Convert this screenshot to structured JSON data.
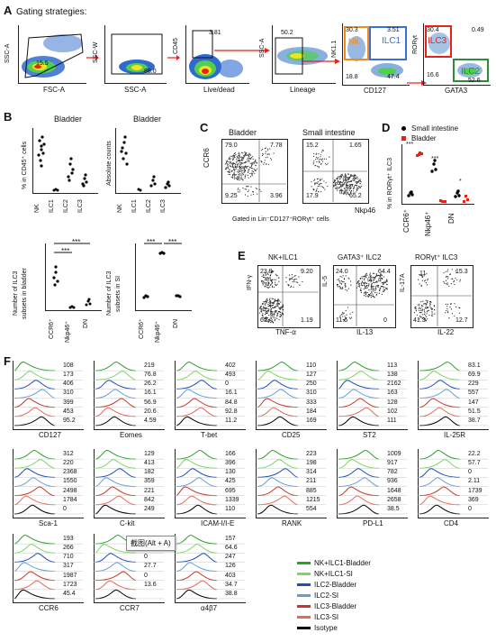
{
  "colors": {
    "nk_b": "#2ca02c",
    "nk_s": "#7fd36b",
    "ilc2_b": "#1f4fb4",
    "ilc2_s": "#6b9bd6",
    "ilc3_b": "#c0392b",
    "ilc3_s": "#e06b5a",
    "iso": "#000000",
    "red": "#e8211a",
    "orange": "#f08a1c",
    "blue": "#3a6fd8",
    "green": "#2f8a3a"
  },
  "A": {
    "letter": "A",
    "title": "Gating strategies:",
    "p1": {
      "y": "SSC-A",
      "x": "FSC-A",
      "val": "15.5"
    },
    "p2": {
      "y": "SSC-W",
      "x": "SSC-A",
      "val": "88.0"
    },
    "p3": {
      "y": "CD45",
      "x": "Live/dead",
      "val": "3.81"
    },
    "p4": {
      "y": "SSC-A",
      "x": "Lineage",
      "val": "50.2"
    },
    "p5": {
      "y": "NK1.1",
      "x": "CD127",
      "q_tl": "30.3",
      "q_tr": "3.51",
      "q_bl": "18.8",
      "q_br": "47.4",
      "nk": "NK",
      "ilc1": "ILC1"
    },
    "p6": {
      "y": "RORγt",
      "x": "GATA3",
      "q_tl": "30.4",
      "q_tr": "0.49",
      "q_bl": "16.6",
      "q_br": "52.6",
      "ilc3": "ILC3",
      "ilc2": "ILC2"
    }
  },
  "B": {
    "letter": "B",
    "c1": {
      "title": "Bladder",
      "ylabel": "% in CD45⁺ cells",
      "ticks": [
        "NK",
        "ILC1",
        "ILC2",
        "ILC3"
      ]
    },
    "c2": {
      "title": "Bladder",
      "ylabel": "Absolute counts",
      "ticks": [
        "NK",
        "ILC1",
        "ILC2",
        "ILC3"
      ]
    },
    "c3": {
      "ylabel1": "Number of ILC3",
      "ylabel2": "subsets in bladder",
      "ticks": [
        "CCR6⁺",
        "Nkp46⁺",
        "DN"
      ],
      "sig1": "***",
      "sig2": "***"
    },
    "c4": {
      "ylabel1": "Number of ILC3",
      "ylabel2": "subsets in SI",
      "ticks": [
        "CCR6⁺",
        "Nkp46⁺",
        "DN"
      ],
      "sig1": "***",
      "sig2": "***"
    }
  },
  "C": {
    "letter": "C",
    "t1": "Bladder",
    "t2": "Small intestine",
    "ylabel": "CCR6",
    "xlabel": "Nkp46",
    "caption": "Gated in Lin⁻CD127⁺RORγt⁺ cells",
    "q1": {
      "tl": "79.0",
      "tr": "7.78",
      "bl": "9.25",
      "br": "3.96"
    },
    "q2": {
      "tl": "15.2",
      "tr": "1.65",
      "bl": "17.9",
      "br": "65.2"
    }
  },
  "D": {
    "letter": "D",
    "legend1": "Small intestine",
    "legend2": "Bladder",
    "ylabel": "% in RORγt⁺ ILC3",
    "ticks": [
      "CCR6⁺",
      "Nkp46⁺",
      "DN"
    ],
    "sig": [
      "***",
      "***",
      "*"
    ]
  },
  "E": {
    "letter": "E",
    "e1": {
      "title": "NK+ILC1",
      "y": "IFN-γ",
      "x": "TNF-α",
      "tl": "23.9",
      "tr": "9.20",
      "bl": "65",
      "br": "1.19"
    },
    "e2": {
      "title": "GATA3⁺ ILC2",
      "y": "IL-5",
      "x": "IL-13",
      "tl": "24.0",
      "tr": "64.4",
      "bl": "11.6",
      "br": "0"
    },
    "e3": {
      "title": "RORγt⁺ ILC3",
      "y": "IL-17A",
      "x": "IL-22",
      "tl": "11",
      "tr": "15.3",
      "bl": "41.3",
      "br": "12.7"
    }
  },
  "F": {
    "letter": "F",
    "hists": [
      {
        "label": "CD127",
        "vals": [
          "108",
          "173",
          "406",
          "310",
          "399",
          "453",
          "95.2"
        ]
      },
      {
        "label": "Eomes",
        "vals": [
          "219",
          "76.8",
          "26.2",
          "16.1",
          "56.9",
          "20.6",
          "4.59"
        ]
      },
      {
        "label": "T-bet",
        "vals": [
          "402",
          "493",
          "0",
          "16.1",
          "84.8",
          "92.8",
          "11.2"
        ]
      },
      {
        "label": "CD25",
        "vals": [
          "110",
          "127",
          "250",
          "310",
          "333",
          "184",
          "169"
        ]
      },
      {
        "label": "ST2",
        "vals": [
          "113",
          "138",
          "2162",
          "163",
          "128",
          "102",
          "111"
        ]
      },
      {
        "label": "IL-25R",
        "vals": [
          "83.1",
          "69.9",
          "229",
          "557",
          "147",
          "51.5",
          "38.7"
        ]
      },
      {
        "label": "Sca-1",
        "vals": [
          "312",
          "220",
          "2368",
          "1550",
          "2498",
          "1784",
          "0"
        ]
      },
      {
        "label": "C-kit",
        "vals": [
          "129",
          "413",
          "182",
          "359",
          "221",
          "842",
          "249"
        ]
      },
      {
        "label": "ICAM-I/I-E",
        "vals": [
          "166",
          "396",
          "130",
          "425",
          "695",
          "1339",
          "110"
        ]
      },
      {
        "label": "RANK",
        "vals": [
          "223",
          "198",
          "314",
          "211",
          "885",
          "1215",
          "554"
        ]
      },
      {
        "label": "PD-L1",
        "vals": [
          "1009",
          "917",
          "782",
          "936",
          "1648",
          "2658",
          "38.5"
        ]
      },
      {
        "label": "CD4",
        "vals": [
          "22.2",
          "57.7",
          "0",
          "2.11",
          "1739",
          "369",
          "0"
        ]
      },
      {
        "label": "CCR6",
        "vals": [
          "193",
          "266",
          "710",
          "317",
          "1987",
          "1723",
          "45.4"
        ]
      },
      {
        "label": "CCR7",
        "vals": [
          "0",
          "35.6",
          "0",
          "27.7",
          "0",
          "13.6",
          ""
        ]
      },
      {
        "label": "α4β7",
        "vals": [
          "157",
          "64.6",
          "247",
          "126",
          "403",
          "34.7",
          "38.8"
        ]
      }
    ],
    "legend": [
      "NK+ILC1-Bladder",
      "NK+ILC1-SI",
      "ILC2-Bladder",
      "ILC2-SI",
      "ILC3-Bladder",
      "ILC3-SI",
      "Isotype"
    ],
    "tooltip": "截图(Alt + A)"
  }
}
